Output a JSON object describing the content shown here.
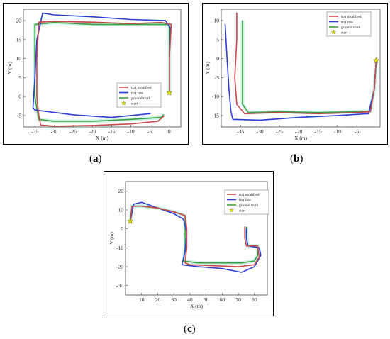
{
  "colors": {
    "modified": "#c9474b",
    "raw": "#2a3fd4",
    "truth": "#3d9e3f",
    "start": "#e8e000",
    "shade": "#bfeee0"
  },
  "legend_labels": [
    "traj modified",
    "traj raw",
    "ground truth",
    "start"
  ],
  "captions": [
    {
      "letter": "a"
    },
    {
      "letter": "b"
    },
    {
      "letter": "c"
    }
  ],
  "chart_data": [
    {
      "type": "line",
      "xlabel": "X (m)",
      "ylabel": "Y (m)",
      "xlim": [
        -38,
        3
      ],
      "ylim": [
        -8,
        23
      ],
      "xticks": [
        -35,
        -30,
        -25,
        -20,
        -15,
        -10,
        -5,
        0
      ],
      "yticks": [
        -5,
        0,
        5,
        10,
        15,
        20
      ],
      "legend": "right",
      "start": [
        0,
        1
      ],
      "series": [
        {
          "name": "traj modified",
          "x": [
            0,
            0,
            0.5,
            -2,
            -10,
            -20,
            -30,
            -34,
            -34.5,
            -34.5,
            -34,
            -33.5,
            -30,
            -20,
            -10,
            -3,
            -1.5
          ],
          "y": [
            1,
            10,
            19,
            19.5,
            19.2,
            19.6,
            19.8,
            19.6,
            10,
            0,
            -5,
            -7.5,
            -7.8,
            -7.6,
            -7.2,
            -6.5,
            -5.2
          ]
        },
        {
          "name": "traj raw",
          "x": [
            0,
            0,
            0.3,
            -1,
            -10,
            -20,
            -30,
            -33,
            -34.5,
            -35,
            -35.5,
            -35,
            -33,
            -25,
            -15,
            -5
          ],
          "y": [
            1,
            10,
            18,
            20,
            20.3,
            21,
            21.5,
            22,
            15,
            5,
            -3,
            -3.5,
            -3.8,
            -4.8,
            -5.5,
            -4.5
          ]
        },
        {
          "name": "ground truth",
          "x": [
            0,
            0,
            0,
            -2,
            -10,
            -20,
            -30,
            -35,
            -35,
            -35,
            -34,
            -30,
            -20,
            -10,
            -2,
            -1.5
          ],
          "y": [
            1,
            10,
            19,
            19,
            19,
            19,
            19.5,
            19,
            10,
            0,
            -6,
            -6.5,
            -6.5,
            -6,
            -5.5,
            -4.8
          ]
        }
      ]
    },
    {
      "type": "line",
      "xlabel": "X (m)",
      "ylabel": "Y (m)",
      "xlim": [
        -40,
        1
      ],
      "ylim": [
        -18,
        13
      ],
      "xticks": [
        -35,
        -30,
        -25,
        -20,
        -15,
        -10,
        -5
      ],
      "yticks": [
        -15,
        -10,
        -5,
        0,
        5,
        10
      ],
      "legend": "top-right",
      "start": [
        0,
        -0.5
      ],
      "series": [
        {
          "name": "traj modified",
          "x": [
            -36,
            -36,
            -36.5,
            -36,
            -34,
            -25,
            -15,
            -5,
            -1.5,
            -0.5,
            0
          ],
          "y": [
            12,
            5,
            -5,
            -12,
            -14.5,
            -14.2,
            -14.5,
            -14.2,
            -14,
            -8,
            -0.5
          ]
        },
        {
          "name": "traj raw",
          "x": [
            -39,
            -38.5,
            -38,
            -37.5,
            -37,
            -30,
            -20,
            -10,
            -2,
            -0.5,
            0
          ],
          "y": [
            9,
            0,
            -8,
            -14,
            -16,
            -16.2,
            -15.5,
            -15,
            -14.5,
            -8,
            -0.5
          ]
        },
        {
          "name": "ground truth",
          "x": [
            -34.5,
            -34.5,
            -34.5,
            -34.5,
            -33,
            -25,
            -15,
            -5,
            -1.5,
            -0.5,
            0
          ],
          "y": [
            10,
            3,
            -5,
            -12,
            -14.2,
            -14,
            -14.2,
            -14,
            -13.8,
            -8,
            -0.5
          ]
        }
      ]
    },
    {
      "type": "line",
      "xlabel": "X (m)",
      "ylabel": "Y (m)",
      "xlim": [
        0,
        88
      ],
      "ylim": [
        -35,
        25
      ],
      "xticks": [
        10,
        20,
        30,
        40,
        50,
        60,
        70,
        80
      ],
      "yticks": [
        -30,
        -20,
        -10,
        0,
        10,
        20
      ],
      "legend": "top-right",
      "start": [
        3,
        4
      ],
      "series": [
        {
          "name": "traj modified",
          "x": [
            3,
            4,
            10,
            20,
            30,
            37,
            38,
            38,
            37,
            40,
            55,
            70,
            80,
            83,
            82,
            75,
            74,
            74
          ],
          "y": [
            4,
            12,
            12,
            11,
            9,
            7,
            0,
            -10,
            -18,
            -19,
            -19.5,
            -20,
            -19,
            -15,
            -9,
            -9,
            -5,
            1
          ]
        },
        {
          "name": "traj raw",
          "x": [
            3,
            5,
            10,
            20,
            30,
            36,
            38,
            37,
            35,
            45,
            60,
            72,
            80,
            84,
            83,
            76,
            75,
            75
          ],
          "y": [
            4,
            13,
            14,
            11,
            8,
            5,
            -2,
            -12,
            -19,
            -20,
            -21,
            -23,
            -20,
            -14,
            -10,
            -9,
            -5,
            0
          ]
        },
        {
          "name": "ground truth",
          "x": [
            3,
            4,
            10,
            20,
            30,
            37,
            37,
            37,
            36,
            45,
            60,
            72,
            80,
            82,
            82,
            76,
            75,
            75
          ],
          "y": [
            4,
            12,
            12,
            11,
            9,
            7,
            0,
            -10,
            -17,
            -18,
            -18,
            -18,
            -17,
            -14,
            -9,
            -9,
            -5,
            1
          ]
        }
      ]
    }
  ]
}
